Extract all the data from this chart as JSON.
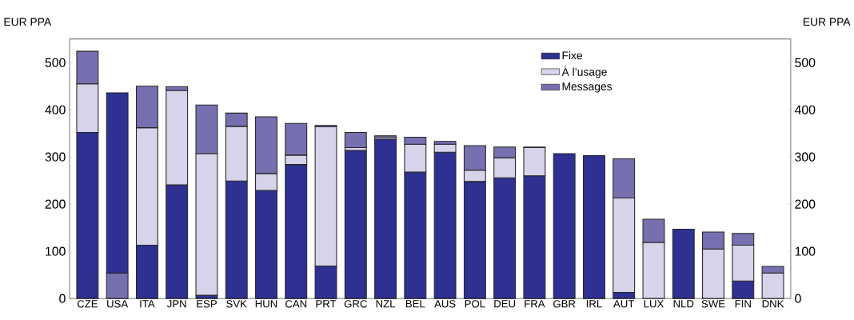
{
  "chart_data": {
    "type": "bar",
    "stacked": true,
    "ylabel": "EUR PPA",
    "y2label": "EUR PPA",
    "categories": [
      "CZE",
      "USA",
      "ITA",
      "JPN",
      "ESP",
      "SVK",
      "HUN",
      "CAN",
      "PRT",
      "GRC",
      "NZL",
      "BEL",
      "AUS",
      "POL",
      "DEU",
      "FRA",
      "GBR",
      "IRL",
      "AUT",
      "LUX",
      "NLD",
      "SWE",
      "FIN",
      "DNK"
    ],
    "series": [
      {
        "color": "#7670b0",
        "values": [
          null,
          54,
          null,
          null,
          null,
          null,
          null,
          null,
          null,
          null,
          null,
          null,
          null,
          null,
          null,
          null,
          null,
          null,
          null,
          null,
          null,
          null,
          null,
          null
        ]
      },
      {
        "name": "Fixe",
        "color": "#2e3192",
        "values": [
          352,
          382,
          113,
          241,
          7,
          249,
          229,
          284,
          69,
          314,
          338,
          268,
          310,
          248,
          256,
          260,
          307,
          303,
          13,
          0,
          147,
          null,
          37,
          null
        ]
      },
      {
        "name": "À l’usage",
        "color": "#d6d3ea",
        "values": [
          103,
          null,
          249,
          200,
          300,
          116,
          36,
          20,
          295,
          6,
          4,
          59,
          17,
          24,
          42,
          60,
          null,
          null,
          200,
          119,
          null,
          105,
          76,
          54
        ]
      },
      {
        "name": "Messages",
        "color": "#7670b0",
        "values": [
          69,
          null,
          88,
          8,
          103,
          28,
          120,
          67,
          3,
          32,
          3,
          15,
          6,
          52,
          23,
          1,
          null,
          null,
          83,
          49,
          null,
          36,
          25,
          14
        ]
      }
    ],
    "ylim": [
      0,
      550
    ],
    "yticks": [
      0,
      100,
      200,
      300,
      400,
      500
    ],
    "y2lim": [
      0,
      550
    ],
    "y2ticks": [
      0,
      100,
      200,
      300,
      400,
      500
    ],
    "legend": "top right",
    "grid": false
  }
}
